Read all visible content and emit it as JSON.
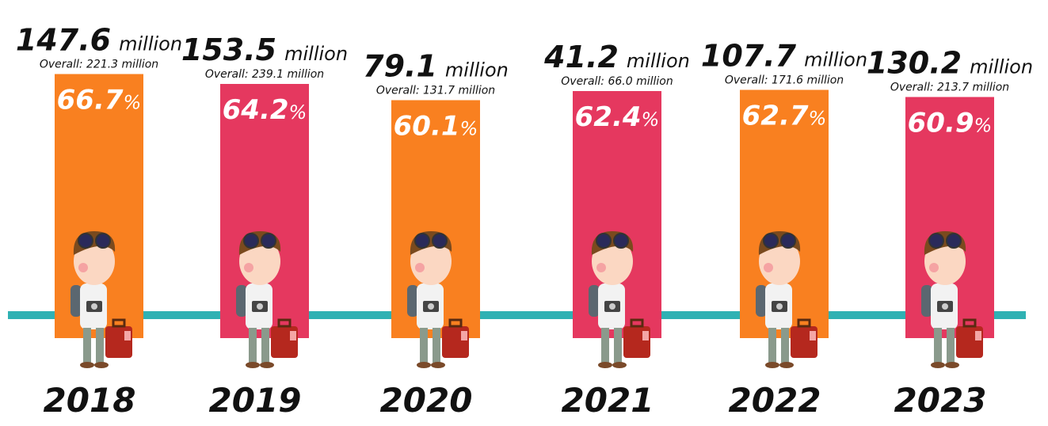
{
  "chart_data": {
    "type": "bar",
    "categories": [
      "2018",
      "2019",
      "2020",
      "2021",
      "2022",
      "2023"
    ],
    "values": [
      147.6,
      153.5,
      79.1,
      41.2,
      107.7,
      130.2
    ],
    "value_unit": "million",
    "overall_labels": [
      "Overall: 221.3 million",
      "Overall: 239.1 million",
      "Overall: 131.7 million",
      "Overall: 66.0 million",
      "Overall: 171.6 million",
      "Overall: 213.7 million"
    ],
    "shares": [
      66.7,
      64.2,
      60.1,
      62.4,
      62.7,
      60.9
    ],
    "share_unit": "%",
    "colors": [
      "#f98020",
      "#e5385f",
      "#f98020",
      "#e5385f",
      "#f98020",
      "#e5385f"
    ],
    "line_color": "#2fb1b3"
  }
}
